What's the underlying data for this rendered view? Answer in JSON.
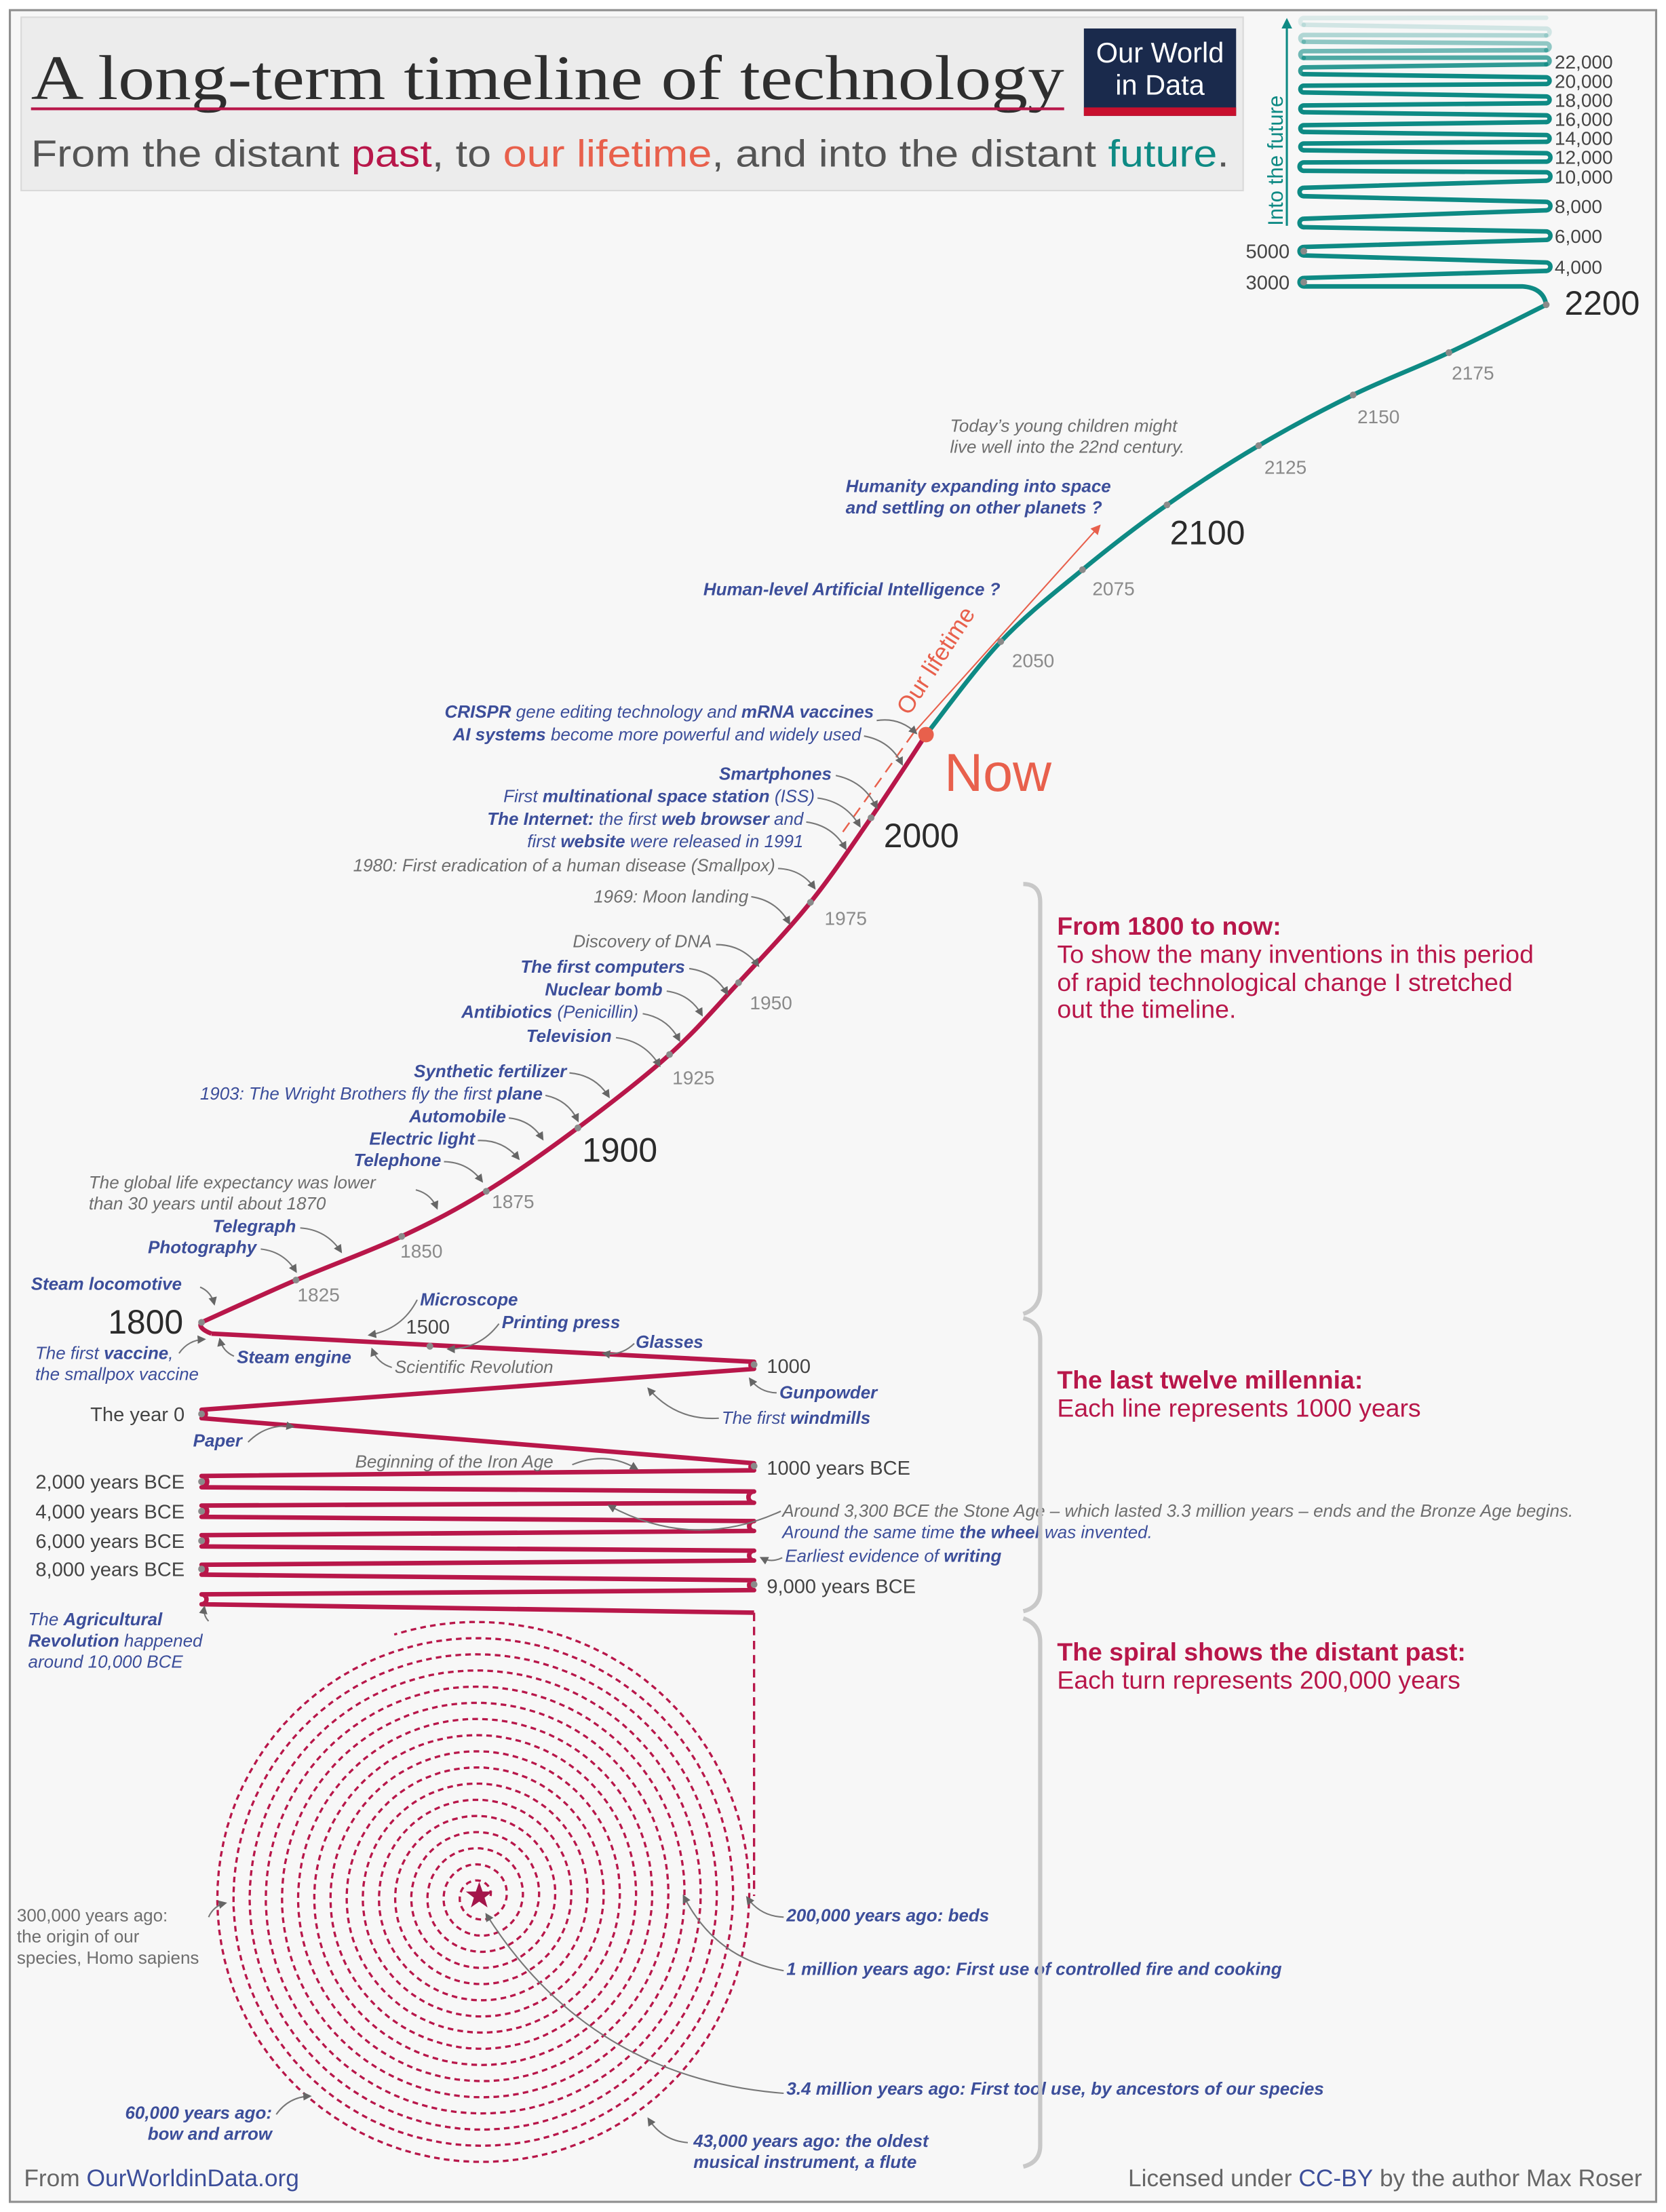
{
  "header": {
    "title": "A long-term timeline of technology",
    "subtitle": {
      "p1": "From the distant ",
      "past": "past",
      "p2": ", to ",
      "lifetime": "our lifetime",
      "p3": ", and into the distant ",
      "future": "future",
      "p4": "."
    }
  },
  "logo": {
    "line1": "Our World",
    "line2": "in Data",
    "bg": "#1a2a4c",
    "accent": "#c8102e"
  },
  "colors": {
    "past": "#b8174a",
    "lifetime": "#e8604c",
    "future": "#0e8a84",
    "annotation": "#3c4e9a",
    "muted": "#6e6e6e"
  },
  "future": {
    "label": "Into the future",
    "right_ticks": [
      "4,000",
      "6,000",
      "8,000",
      "10,000",
      "12,000",
      "14,000",
      "16,000",
      "18,000",
      "20,000",
      "22,000"
    ],
    "left_ticks": [
      "3000",
      "5000"
    ]
  },
  "chart_data": {
    "type": "line",
    "title": "A long-term timeline of technology",
    "segments": [
      {
        "range": "3.4 million years ago – 10,000 BCE",
        "shape": "spiral",
        "unit_per_turn": "200,000 years"
      },
      {
        "range": "10,000 BCE – 1800",
        "shape": "zigzag",
        "unit_per_line": "1000 years"
      },
      {
        "range": "1800 – Now",
        "shape": "stretched curve"
      },
      {
        "range": "Now – 2200",
        "shape": "curve"
      },
      {
        "range": "2200 – 22,000+",
        "shape": "zigzag",
        "fades_out": true
      }
    ]
  },
  "timeline": {
    "major": {
      "y1800": "1800",
      "y1900": "1900",
      "y2000": "2000",
      "y2100": "2100",
      "y2200": "2200"
    },
    "now": "Now",
    "lifetime_label": "Our lifetime",
    "minor": [
      "1825",
      "1850",
      "1875",
      "1925",
      "1950",
      "1975",
      "2050",
      "2075",
      "2125",
      "2150",
      "2175"
    ],
    "ancient": {
      "y1500": "1500",
      "y1000": "1000",
      "year0": "The year 0",
      "bce1000": "1000 years BCE",
      "bce2000": "2,000 years BCE",
      "bce4000": "4,000 years BCE",
      "bce6000": "6,000 years BCE",
      "bce8000": "8,000 years BCE",
      "bce9000": "9,000 years BCE"
    }
  },
  "events": {
    "children": [
      "Today’s young children might",
      "live well into the 22nd century."
    ],
    "space": [
      "Humanity expanding into space",
      "and settling on other planets ?"
    ],
    "ai": [
      "Human-level Artificial Intelligence ?"
    ],
    "crispr": [
      "CRISPR",
      " gene editing technology and ",
      "mRNA vaccines"
    ],
    "ai_systems": [
      "AI systems",
      " become more powerful and widely used"
    ],
    "smartphones": [
      "Smartphones"
    ],
    "iss": [
      "First ",
      "multinational space station",
      " (ISS)"
    ],
    "internet": [
      "The Internet:",
      " the first ",
      "web browser",
      " and"
    ],
    "internet2": [
      "first ",
      "website",
      " were released in 1991"
    ],
    "smallpox": [
      "1980: First eradication of a human disease (Smallpox)"
    ],
    "moon": [
      "1969: Moon landing"
    ],
    "dna": [
      "Discovery of DNA"
    ],
    "computers": [
      "The first computers"
    ],
    "nuclear": [
      "Nuclear bomb"
    ],
    "antibiotics": [
      "Antibiotics",
      " (Penicillin)"
    ],
    "television": [
      "Television"
    ],
    "fertilizer": [
      "Synthetic fertilizer"
    ],
    "plane": [
      "1903: The Wright Brothers fly the first ",
      "plane"
    ],
    "automobile": [
      "Automobile"
    ],
    "electric": [
      "Electric light"
    ],
    "telephone": [
      "Telephone"
    ],
    "life_expectancy": [
      "The global life expectancy was lower",
      "than 30 years until about 1870"
    ],
    "telegraph": [
      "Telegraph"
    ],
    "photography": [
      "Photography"
    ],
    "locomotive": [
      "Steam locomotive"
    ],
    "microscope": [
      "Microscope"
    ],
    "printing": [
      "Printing press"
    ],
    "glasses": [
      "Glasses"
    ],
    "steam_engine": [
      "Steam engine"
    ],
    "sci_rev": [
      "Scientific Revolution"
    ],
    "vaccine": [
      "The first ",
      "vaccine",
      ","
    ],
    "vaccine2": [
      "the smallpox vaccine"
    ],
    "gunpowder": [
      "Gunpowder"
    ],
    "windmills": [
      "The first ",
      "windmills"
    ],
    "paper": [
      "Paper"
    ],
    "iron": [
      "Beginning of the Iron Age"
    ],
    "bronze": [
      "Around 3,300 BCE the Stone Age – which lasted 3.3 million years – ends and the Bronze Age begins."
    ],
    "wheel": [
      "Around the same time ",
      "the wheel",
      " was invented."
    ],
    "writing": [
      "Earliest evidence of ",
      "writing"
    ],
    "agri": [
      "The ",
      "Agricultural"
    ],
    "agri2": [
      "Revolution",
      " happened"
    ],
    "agri3": [
      "around 10,000 BCE"
    ],
    "sapiens": [
      "300,000 years ago:",
      "the origin of our",
      "species, Homo sapiens"
    ],
    "beds": [
      "200,000 years ago: beds"
    ],
    "fire": [
      "1 million years ago: First use of controlled fire and cooking"
    ],
    "tools": [
      "3.4 million years ago: First tool use, by ancestors of our species"
    ],
    "bow": [
      "60,000 years ago:",
      "bow and arrow"
    ],
    "flute": [
      "43,000 years ago: the oldest",
      "musical instrument, a flute"
    ]
  },
  "sections": [
    {
      "title": "From 1800 to now:",
      "lines": [
        "To show the many inventions in this period",
        "of rapid technological change I stretched",
        "out the timeline."
      ]
    },
    {
      "title": "The last twelve millennia:",
      "lines": [
        "Each line represents 1000 years"
      ]
    },
    {
      "title": "The spiral shows the distant past:",
      "lines": [
        "Each turn represents 200,000 years"
      ]
    }
  ],
  "footer": {
    "from": "From ",
    "site": "OurWorldinData.org",
    "license1": "Licensed under ",
    "license": "CC-BY",
    "license2": " by the author Max Roser"
  }
}
